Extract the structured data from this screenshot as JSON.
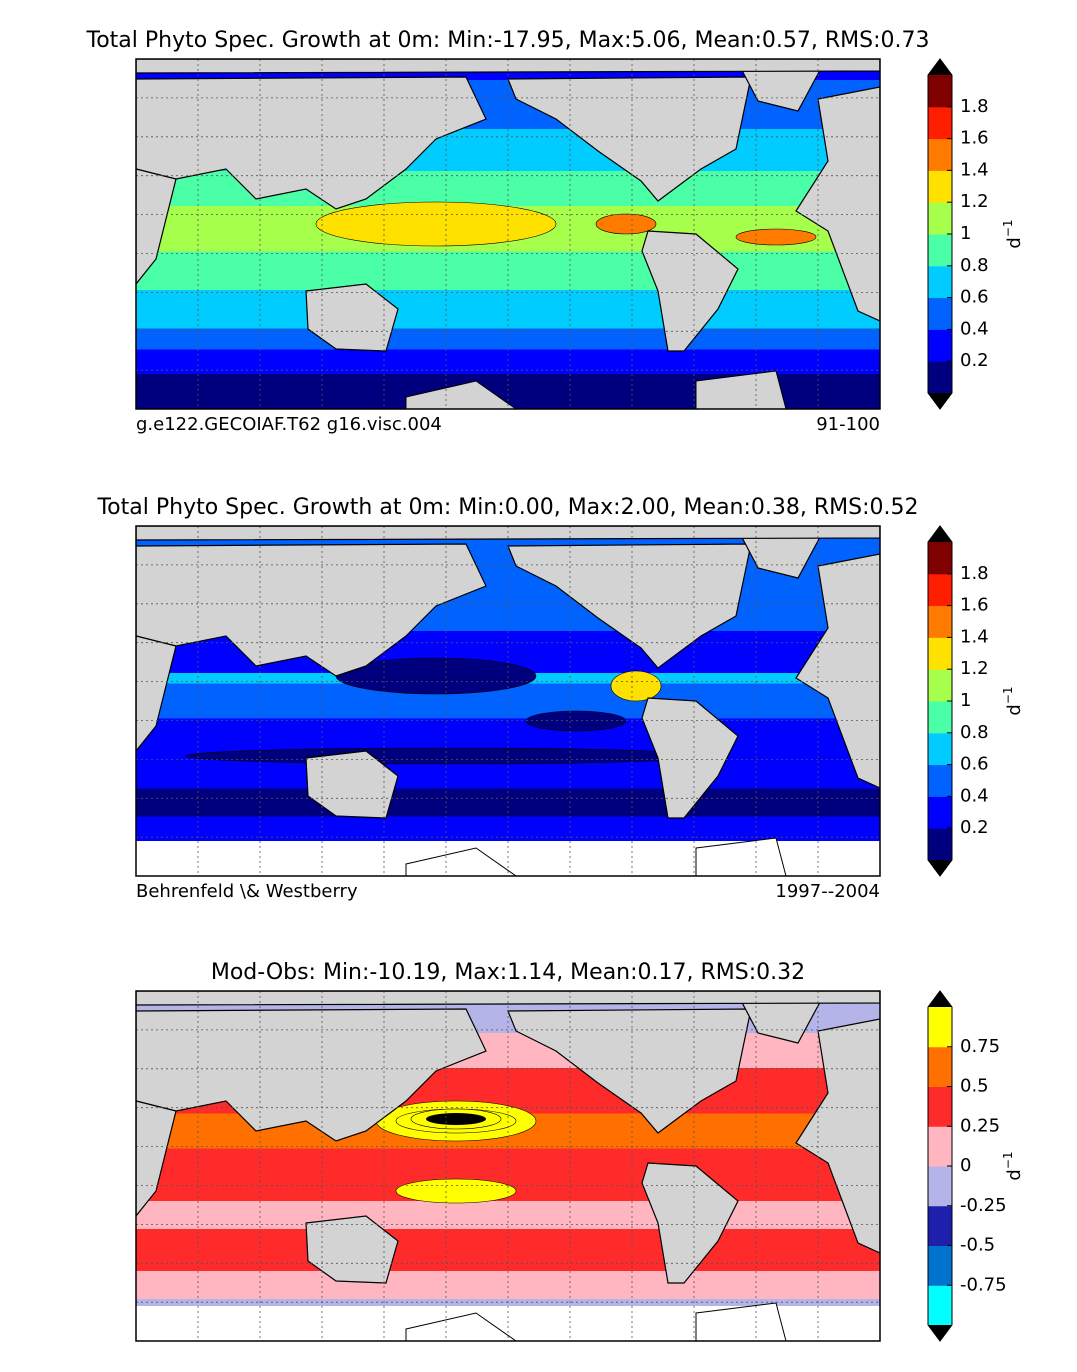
{
  "panels": [
    {
      "title": "Total Phyto Spec. Growth at 0m: Min:-17.95, Max:5.06, Mean:0.57, RMS:0.73",
      "left_caption": "g.e122.GECOIAF.T62 g16.visc.004",
      "right_caption": "91-100",
      "colorbar": {
        "colors": [
          "#00007f",
          "#0000ff",
          "#0062ff",
          "#00ccff",
          "#4bffa7",
          "#a6ff4b",
          "#ffe100",
          "#ff7b00",
          "#ff1e00",
          "#7f0000"
        ],
        "ticks": [
          "0.2",
          "0.4",
          "0.6",
          "0.8",
          "1",
          "1.2",
          "1.4",
          "1.6",
          "1.8"
        ],
        "unit": "d",
        "unit_exponent": "−1"
      }
    },
    {
      "title": "Total Phyto Spec. Growth at 0m: Min:0.00, Max:2.00, Mean:0.38, RMS:0.52",
      "left_caption": "Behrenfeld \\& Westberry",
      "right_caption": "1997--2004",
      "colorbar": {
        "colors": [
          "#00007f",
          "#0000ff",
          "#0062ff",
          "#00ccff",
          "#4bffa7",
          "#a6ff4b",
          "#ffe100",
          "#ff7b00",
          "#ff1e00",
          "#7f0000"
        ],
        "ticks": [
          "0.2",
          "0.4",
          "0.6",
          "0.8",
          "1",
          "1.2",
          "1.4",
          "1.6",
          "1.8"
        ],
        "unit": "d",
        "unit_exponent": "−1"
      }
    },
    {
      "title": "Mod-Obs: Min:-10.19, Max:1.14, Mean:0.17, RMS:0.32",
      "colorbar": {
        "colors": [
          "#00ffff",
          "#0073cf",
          "#1f1fae",
          "#b4b4e8",
          "#ffb6c1",
          "#ff2a2a",
          "#ff7000",
          "#ffff00"
        ],
        "ticks": [
          "-0.75",
          "-0.5",
          "-0.25",
          "0",
          "0.25",
          "0.5",
          "0.75"
        ],
        "unit": "d",
        "unit_exponent": "−1"
      }
    }
  ]
}
